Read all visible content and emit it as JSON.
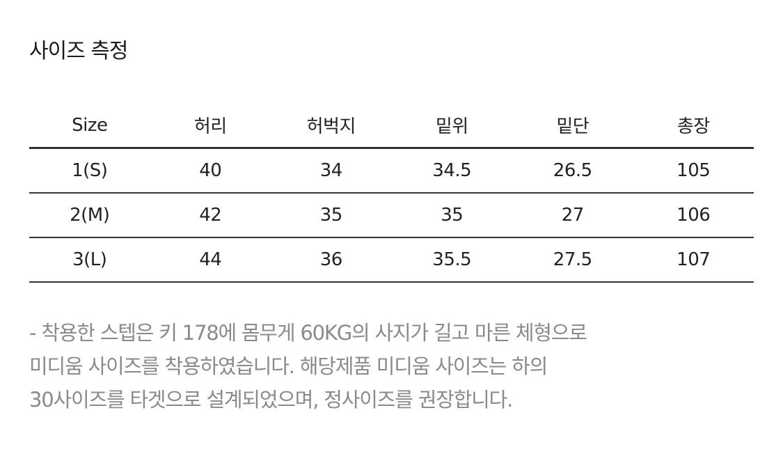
{
  "title": "사이즈 측정",
  "table": {
    "headers": [
      "Size",
      "허리",
      "허벅지",
      "밑위",
      "밑단",
      "총장"
    ],
    "rows": [
      [
        "1(S)",
        "40",
        "34",
        "34.5",
        "26.5",
        "105"
      ],
      [
        "2(M)",
        "42",
        "35",
        "35",
        "27",
        "106"
      ],
      [
        "3(L)",
        "44",
        "36",
        "35.5",
        "27.5",
        "107"
      ]
    ]
  },
  "note": {
    "lines": [
      "- 착용한 스텝은 키 178에 몸무게 60KG의 사지가 길고 마른 체형으로",
      "미디움 사이즈를 착용하였습니다. 해당제품 미디움 사이즈는 하의",
      "30사이즈를 타겟으로 설계되었으며, 정사이즈를 권장합니다."
    ]
  }
}
